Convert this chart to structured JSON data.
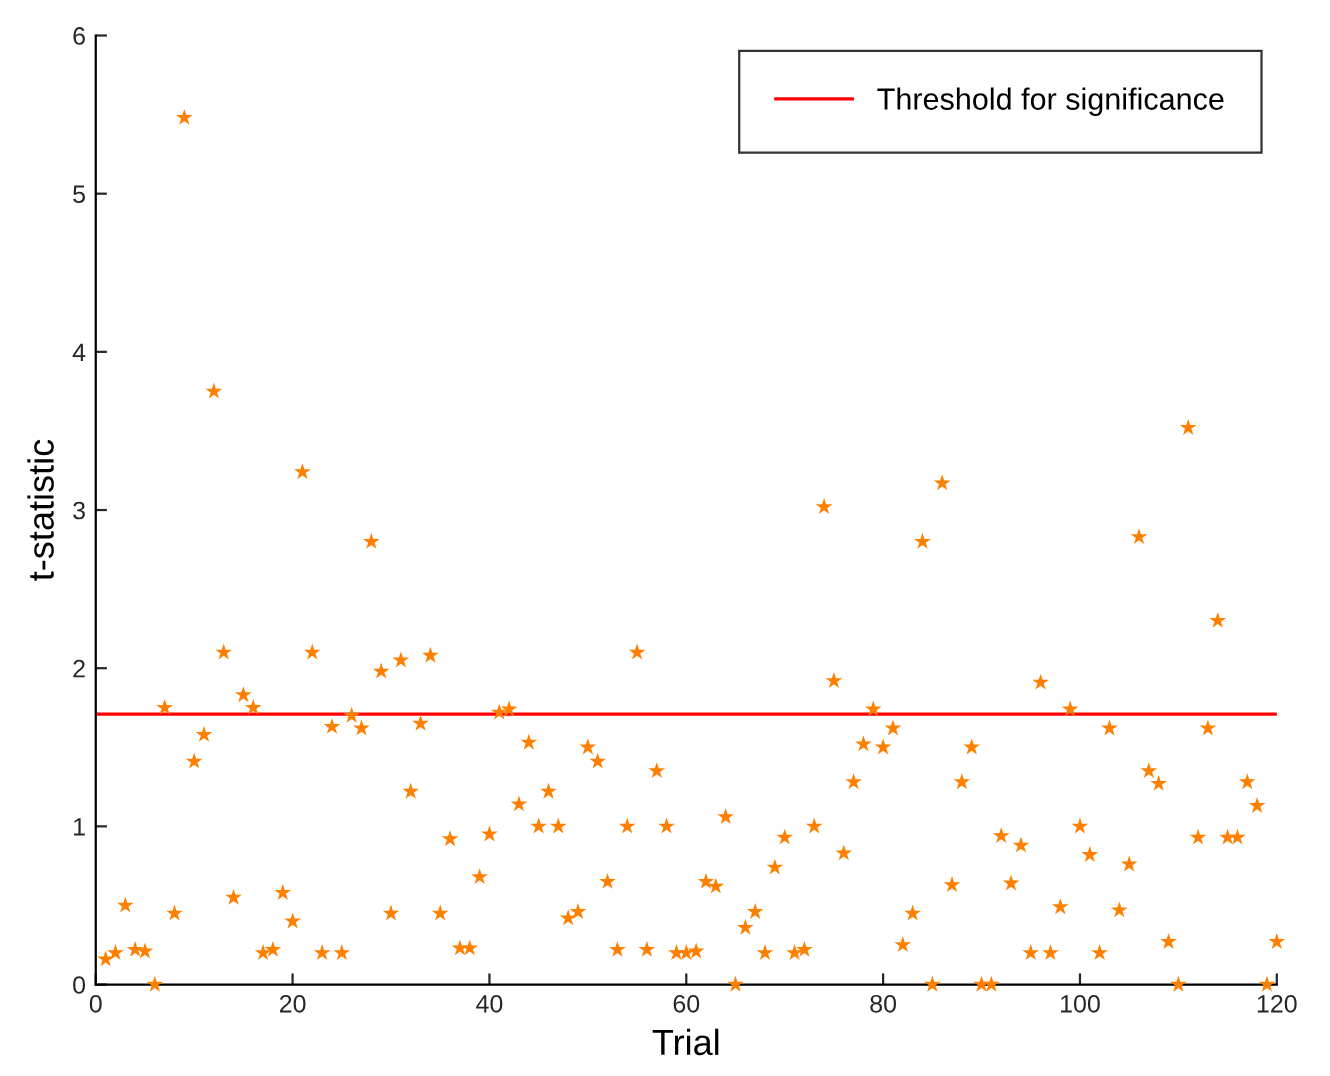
{
  "chart_data": {
    "type": "scatter",
    "xlabel": "Trial",
    "ylabel": "t-statistic",
    "x": [
      1,
      2,
      3,
      4,
      5,
      6,
      7,
      8,
      9,
      10,
      11,
      12,
      13,
      14,
      15,
      16,
      17,
      18,
      19,
      20,
      21,
      22,
      23,
      24,
      25,
      26,
      27,
      28,
      29,
      30,
      31,
      32,
      33,
      34,
      35,
      36,
      37,
      38,
      39,
      40,
      41,
      42,
      43,
      44,
      45,
      46,
      47,
      48,
      49,
      50,
      51,
      52,
      53,
      54,
      55,
      56,
      57,
      58,
      59,
      60,
      61,
      62,
      63,
      64,
      65,
      66,
      67,
      68,
      69,
      70,
      71,
      72,
      73,
      74,
      75,
      76,
      77,
      78,
      79,
      80,
      81,
      82,
      83,
      84,
      85,
      86,
      87,
      88,
      89,
      90,
      91,
      92,
      93,
      94,
      95,
      96,
      97,
      98,
      99,
      100,
      101,
      102,
      103,
      104,
      105,
      106,
      107,
      108,
      109,
      110,
      111,
      112,
      113,
      114,
      115,
      116,
      117,
      118,
      119,
      120
    ],
    "series": [
      {
        "color": "#ff8000",
        "values": [
          0.16,
          0.2,
          0.5,
          0.22,
          0.21,
          0.0,
          1.75,
          0.45,
          5.48,
          1.41,
          1.58,
          3.75,
          2.1,
          0.55,
          1.83,
          1.75,
          0.2,
          0.22,
          0.58,
          0.4,
          3.24,
          2.1,
          0.2,
          1.63,
          0.2,
          1.7,
          1.62,
          2.8,
          1.98,
          0.45,
          2.05,
          1.22,
          1.65,
          2.08,
          0.45,
          0.92,
          0.23,
          0.23,
          0.68,
          0.95,
          1.72,
          1.74,
          1.14,
          1.53,
          1.0,
          1.22,
          1.0,
          0.42,
          0.46,
          1.5,
          1.41,
          0.65,
          0.22,
          1.0,
          2.1,
          0.22,
          1.35,
          1.0,
          0.2,
          0.2,
          0.21,
          0.65,
          0.62,
          1.06,
          0.0,
          0.36,
          0.46,
          0.2,
          0.74,
          0.93,
          0.2,
          0.22,
          1.0,
          3.02,
          1.92,
          0.83,
          1.28,
          1.52,
          1.74,
          1.5,
          1.62,
          0.25,
          0.45,
          2.8,
          0.0,
          3.17,
          0.63,
          1.28,
          1.5,
          0.0,
          0.0,
          0.94,
          0.64,
          0.88,
          0.2,
          1.91,
          0.2,
          0.49,
          1.74,
          1.0,
          0.82,
          0.2,
          1.62,
          0.47,
          0.76,
          2.83,
          1.35,
          1.27,
          0.27,
          0.0,
          3.52,
          0.93,
          1.62,
          2.3,
          0.93,
          0.93,
          1.28,
          1.13,
          0.0,
          0.27
        ]
      }
    ],
    "marker": "star",
    "xlim": [
      0,
      120
    ],
    "xticks": [
      0,
      20,
      40,
      60,
      80,
      100,
      120
    ],
    "ylim": [
      0,
      6
    ],
    "yticks": [
      0,
      1,
      2,
      3,
      4,
      5,
      6
    ],
    "ref_lines": [
      {
        "axis": "y",
        "value": 1.71,
        "label": "Threshold for significance",
        "color": "#ff0000",
        "line_style": "solid"
      }
    ],
    "legend": "top right",
    "grid": false
  }
}
